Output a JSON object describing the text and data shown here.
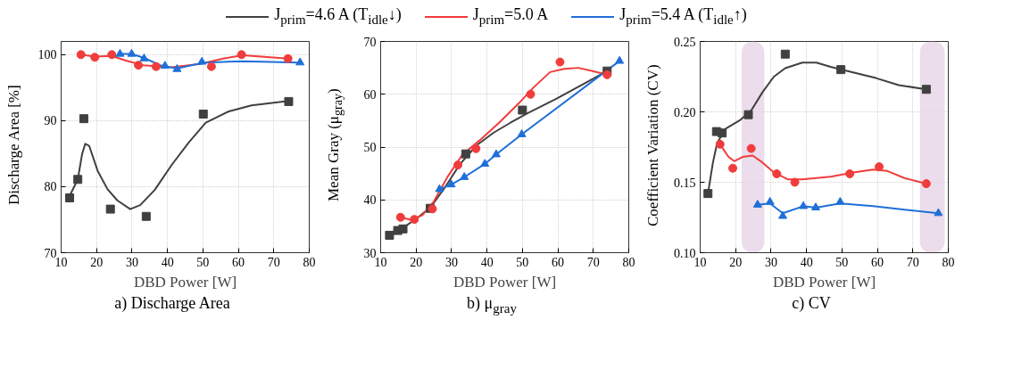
{
  "chart_data": [
    {
      "type": "scatter",
      "title": "a) Discharge Area",
      "xlabel": "DBD Power [W]",
      "ylabel": "Discharge Area [%]",
      "xlim": [
        10,
        80
      ],
      "xticks": [
        10,
        20,
        30,
        40,
        50,
        60,
        70,
        80
      ],
      "ylim": [
        70,
        102
      ],
      "yticks": [
        70,
        80,
        90,
        100
      ],
      "grid": true,
      "legend": "top",
      "series": [
        {
          "name": "J$_{prim}$=4.6 A (T$_{idle}$↓)",
          "color": "#404040",
          "marker": "square",
          "x": [
            12.4,
            14.7,
            16.4,
            23.9,
            34.0,
            50.1,
            74.2
          ],
          "values": [
            78.3,
            81.1,
            90.3,
            76.6,
            75.5,
            91.0,
            92.9
          ]
        },
        {
          "name": "J$_{prim}$=5.0 A",
          "color": "#f03c3c",
          "marker": "circle",
          "x": [
            15.6,
            19.5,
            24.3,
            31.8,
            36.8,
            52.4,
            60.9,
            74.0
          ],
          "values": [
            100.0,
            99.6,
            100.0,
            98.4,
            98.2,
            98.2,
            100.0,
            99.4
          ]
        },
        {
          "name": "J$_{prim}$=5.4 A (T$_{idle}$↑)",
          "color": "#1f6fd8",
          "marker": "triangle",
          "x": [
            26.6,
            29.9,
            33.4,
            39.3,
            42.7,
            49.7,
            77.4
          ],
          "values": [
            100.1,
            100.1,
            99.4,
            98.3,
            97.8,
            98.9,
            98.8
          ]
        },
        {
          "type": "line",
          "color": "#404040",
          "x": [
            12.4,
            14.7,
            15.9,
            16.8,
            17.9,
            20.3,
            23.1,
            25.9,
            29.5,
            32.3,
            36.4,
            41.2,
            46.0,
            50.8,
            57.3,
            63.7,
            74.2
          ],
          "values": [
            78.6,
            81.1,
            84.9,
            86.5,
            86.2,
            82.4,
            79.6,
            77.9,
            76.6,
            77.2,
            79.5,
            83.3,
            86.7,
            89.7,
            91.4,
            92.3,
            93.0
          ]
        },
        {
          "type": "line",
          "color": "#f03c3c",
          "x": [
            15.6,
            19.5,
            24.3,
            28.3,
            33.2,
            41.2,
            49.2,
            55.7,
            61.3,
            74.0
          ],
          "values": [
            100.0,
            99.7,
            99.8,
            99.1,
            98.4,
            98.1,
            98.6,
            99.4,
            99.9,
            99.4
          ]
        },
        {
          "type": "line",
          "color": "#1f6fd8",
          "x": [
            26.6,
            29.9,
            33.4,
            37.9,
            42.7,
            47.6,
            50.8,
            61.3,
            77.4
          ],
          "values": [
            100.1,
            100.1,
            99.5,
            98.4,
            97.9,
            98.5,
            98.8,
            99.0,
            98.8
          ]
        }
      ]
    },
    {
      "type": "scatter",
      "title": "b) μ$_{gray}$",
      "xlabel": "DBD Power [W]",
      "ylabel": "Mean Gray (μ$_{gray}$)",
      "xlim": [
        10,
        80
      ],
      "xticks": [
        10,
        20,
        30,
        40,
        50,
        60,
        70,
        80
      ],
      "ylim": [
        30,
        70
      ],
      "yticks": [
        30,
        40,
        50,
        60,
        70
      ],
      "grid": true,
      "series": [
        {
          "color": "#404040",
          "marker": "square",
          "x": [
            12.5,
            14.8,
            16.3,
            24.0,
            34.0,
            50.0,
            73.9
          ],
          "values": [
            33.3,
            34.2,
            34.5,
            38.4,
            48.7,
            57.0,
            64.4
          ]
        },
        {
          "color": "#f03c3c",
          "marker": "circle",
          "x": [
            15.6,
            19.5,
            24.6,
            31.8,
            36.9,
            52.3,
            60.6,
            73.9
          ],
          "values": [
            36.7,
            36.3,
            38.3,
            46.6,
            49.7,
            60.0,
            66.1,
            63.7
          ]
        },
        {
          "color": "#1f6fd8",
          "marker": "triangle",
          "x": [
            26.6,
            29.9,
            33.6,
            39.4,
            42.6,
            49.8,
            77.4
          ],
          "values": [
            42.0,
            42.9,
            44.3,
            46.8,
            48.6,
            52.4,
            66.3
          ]
        },
        {
          "type": "line",
          "color": "#404040",
          "x": [
            12.5,
            16.3,
            20.2,
            24.2,
            28.2,
            32.2,
            37.0,
            41.8,
            46.6,
            51.4,
            59.4,
            67.4,
            73.9
          ],
          "values": [
            33.3,
            34.7,
            36.5,
            38.7,
            42.4,
            46.6,
            50.3,
            52.7,
            54.6,
            56.4,
            59.1,
            62.0,
            64.4
          ]
        },
        {
          "type": "line",
          "color": "#f03c3c",
          "x": [
            15.6,
            18.6,
            21.8,
            25.0,
            29.0,
            33.0,
            37.8,
            43.4,
            49.0,
            53.0,
            57.8,
            61.8,
            65.8,
            69.8,
            73.9
          ],
          "values": [
            36.7,
            36.2,
            37.1,
            39.7,
            44.5,
            48.5,
            51.2,
            54.6,
            58.3,
            61.2,
            64.2,
            64.8,
            65.0,
            64.4,
            63.7
          ]
        },
        {
          "type": "line",
          "color": "#1f6fd8",
          "x": [
            26.6,
            29.9,
            33.6,
            39.4,
            42.6,
            49.8,
            77.4
          ],
          "values": [
            42.0,
            42.9,
            44.3,
            46.8,
            48.6,
            52.4,
            66.3
          ]
        }
      ]
    },
    {
      "type": "scatter",
      "title": "c) CV",
      "xlabel": "DBD Power [W]",
      "ylabel": "Coefficient Variation (CV)",
      "xlim": [
        10,
        80
      ],
      "xticks": [
        10,
        20,
        30,
        40,
        50,
        60,
        70,
        80
      ],
      "ylim": [
        0.1,
        0.25
      ],
      "yticks": [
        {
          "value": 0.1,
          "label": "0.10"
        },
        {
          "value": 0.15,
          "label": "0.15"
        },
        {
          "value": 0.2,
          "label": "0.20"
        },
        {
          "value": 0.25,
          "label": "0.25"
        }
      ],
      "grid": true,
      "bands": [
        {
          "axis": "x",
          "from": 21.7,
          "to": 28.1,
          "color": "#e6d5e6"
        },
        {
          "axis": "x",
          "from": 72.0,
          "to": 79.0,
          "color": "#e6d5e6"
        }
      ],
      "series": [
        {
          "color": "#404040",
          "marker": "square",
          "x": [
            12.2,
            14.6,
            16.2,
            23.6,
            34.0,
            49.7,
            73.8
          ],
          "values": [
            0.142,
            0.186,
            0.185,
            0.198,
            0.241,
            0.23,
            0.216
          ]
        },
        {
          "color": "#f03c3c",
          "marker": "circle",
          "x": [
            15.6,
            19.2,
            24.4,
            31.6,
            36.7,
            52.2,
            60.5,
            73.8
          ],
          "values": [
            0.177,
            0.16,
            0.174,
            0.156,
            0.15,
            0.156,
            0.161,
            0.149
          ]
        },
        {
          "color": "#1f6fd8",
          "marker": "triangle",
          "x": [
            26.2,
            29.7,
            33.3,
            39.1,
            42.6,
            49.5,
            77.2
          ],
          "values": [
            0.134,
            0.136,
            0.126,
            0.133,
            0.132,
            0.136,
            0.128
          ]
        },
        {
          "type": "line",
          "color": "#404040",
          "x": [
            12.2,
            13.6,
            14.8,
            17.2,
            21.2,
            24.4,
            27.6,
            30.8,
            34.0,
            38.8,
            42.8,
            46.8,
            51.6,
            59.6,
            66.0,
            73.8
          ],
          "values": [
            0.142,
            0.164,
            0.178,
            0.188,
            0.194,
            0.201,
            0.214,
            0.225,
            0.231,
            0.235,
            0.235,
            0.232,
            0.229,
            0.224,
            0.219,
            0.216
          ]
        },
        {
          "type": "line",
          "color": "#f03c3c",
          "x": [
            15.6,
            18.0,
            19.6,
            22.0,
            24.8,
            27.6,
            30.8,
            34.8,
            38.8,
            46.8,
            53.2,
            58.8,
            62.8,
            67.6,
            73.8
          ],
          "values": [
            0.177,
            0.168,
            0.165,
            0.168,
            0.169,
            0.164,
            0.157,
            0.152,
            0.152,
            0.154,
            0.157,
            0.159,
            0.158,
            0.153,
            0.149
          ]
        },
        {
          "type": "line",
          "color": "#1f6fd8",
          "x": [
            26.2,
            29.7,
            33.3,
            39.1,
            42.6,
            49.5,
            58.8,
            77.2
          ],
          "values": [
            0.134,
            0.135,
            0.128,
            0.133,
            0.132,
            0.135,
            0.133,
            0.128
          ]
        }
      ]
    }
  ]
}
